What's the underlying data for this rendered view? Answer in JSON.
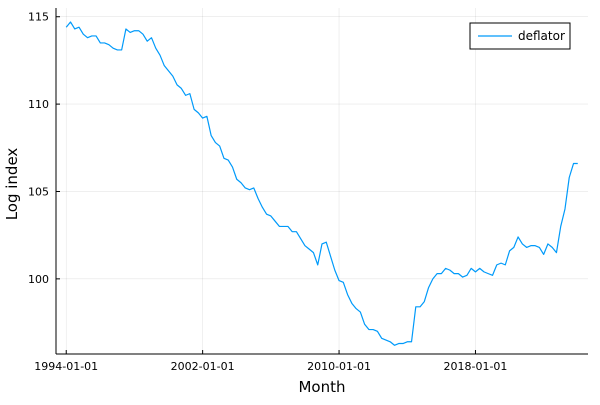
{
  "chart_data": {
    "type": "line",
    "title": "",
    "xlabel": "Month",
    "ylabel": "Log index",
    "x_tick_labels": [
      "1994-01-01",
      "2002-01-01",
      "2010-01-01",
      "2018-01-01"
    ],
    "x_tick_values": [
      1994.0,
      2002.0,
      2010.0,
      2018.0
    ],
    "y_tick_labels": [
      "100",
      "105",
      "110",
      "115"
    ],
    "y_tick_values": [
      100,
      105,
      110,
      115
    ],
    "xlim": [
      1993.4,
      2024.6
    ],
    "ylim": [
      95.7,
      115.5
    ],
    "grid": true,
    "legend_position": "top-right",
    "series": [
      {
        "name": "deflator",
        "color": "#009AFA",
        "x": [
          1994.0,
          1994.25,
          1994.5,
          1994.75,
          1995.0,
          1995.25,
          1995.5,
          1995.75,
          1996.0,
          1996.25,
          1996.5,
          1996.75,
          1997.0,
          1997.25,
          1997.5,
          1997.75,
          1998.0,
          1998.25,
          1998.5,
          1998.75,
          1999.0,
          1999.25,
          1999.5,
          1999.75,
          2000.0,
          2000.25,
          2000.5,
          2000.75,
          2001.0,
          2001.25,
          2001.5,
          2001.75,
          2002.0,
          2002.25,
          2002.5,
          2002.75,
          2003.0,
          2003.25,
          2003.5,
          2003.75,
          2004.0,
          2004.25,
          2004.5,
          2004.75,
          2005.0,
          2005.25,
          2005.5,
          2005.75,
          2006.0,
          2006.25,
          2006.5,
          2006.75,
          2007.0,
          2007.25,
          2007.5,
          2007.75,
          2008.0,
          2008.25,
          2008.5,
          2008.75,
          2009.0,
          2009.25,
          2009.5,
          2009.75,
          2010.0,
          2010.25,
          2010.5,
          2010.75,
          2011.0,
          2011.25,
          2011.5,
          2011.75,
          2012.0,
          2012.25,
          2012.5,
          2012.75,
          2013.0,
          2013.25,
          2013.5,
          2013.75,
          2014.0,
          2014.25,
          2014.5,
          2014.75,
          2015.0,
          2015.25,
          2015.5,
          2015.75,
          2016.0,
          2016.25,
          2016.5,
          2016.75,
          2017.0,
          2017.25,
          2017.5,
          2017.75,
          2018.0,
          2018.25,
          2018.5,
          2018.75,
          2019.0,
          2019.25,
          2019.5,
          2019.75,
          2020.0,
          2020.25,
          2020.5,
          2020.75,
          2021.0,
          2021.25,
          2021.5,
          2021.75,
          2022.0,
          2022.25,
          2022.5,
          2022.75,
          2023.0,
          2023.25,
          2023.5,
          2023.75,
          2024.0
        ],
        "values": [
          114.4,
          114.7,
          114.3,
          114.4,
          114.0,
          113.8,
          113.9,
          113.9,
          113.5,
          113.5,
          113.4,
          113.2,
          113.1,
          113.1,
          114.3,
          114.1,
          114.2,
          114.2,
          114.0,
          113.6,
          113.8,
          113.2,
          112.8,
          112.2,
          111.9,
          111.6,
          111.1,
          110.9,
          110.5,
          110.6,
          109.7,
          109.5,
          109.2,
          109.3,
          108.2,
          107.8,
          107.6,
          106.9,
          106.8,
          106.4,
          105.7,
          105.5,
          105.2,
          105.1,
          105.2,
          104.6,
          104.1,
          103.7,
          103.6,
          103.3,
          103.0,
          103.0,
          103.0,
          102.7,
          102.7,
          102.3,
          101.9,
          101.7,
          101.5,
          100.8,
          102.0,
          102.1,
          101.3,
          100.5,
          99.9,
          99.8,
          99.1,
          98.6,
          98.3,
          98.1,
          97.4,
          97.1,
          97.1,
          97.0,
          96.6,
          96.5,
          96.4,
          96.2,
          96.3,
          96.3,
          96.4,
          96.4,
          98.4,
          98.4,
          98.7,
          99.5,
          100.0,
          100.3,
          100.3,
          100.6,
          100.5,
          100.3,
          100.3,
          100.1,
          100.2,
          100.6,
          100.4,
          100.6,
          100.4,
          100.3,
          100.2,
          100.8,
          100.9,
          100.8,
          101.6,
          101.8,
          102.4,
          102.0,
          101.8,
          101.9,
          101.9,
          101.8,
          101.4,
          102.0,
          101.8,
          101.5,
          103.0,
          104.0,
          105.8,
          106.6,
          106.6
        ]
      }
    ]
  }
}
